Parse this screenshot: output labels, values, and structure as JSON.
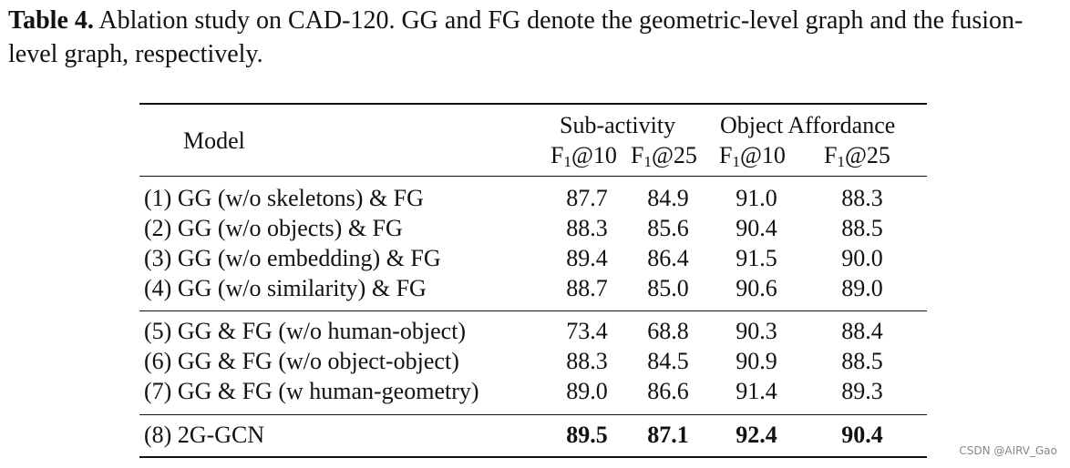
{
  "caption": {
    "label": "Table 4.",
    "text": "Ablation study on CAD-120. GG and FG denote the geometric-level graph and the fusion-level graph, respectively."
  },
  "table": {
    "header": {
      "model": "Model",
      "group1": "Sub-activity",
      "group2": "Object Affordance",
      "metric_prefix": "F",
      "metric_sub": "1",
      "cols": [
        "@10",
        "@25",
        "@10",
        "@25"
      ]
    },
    "rows": [
      {
        "label": "(1) GG (w/o skeletons) & FG",
        "values": [
          "87.7",
          "84.9",
          "91.0",
          "88.3"
        ],
        "bold": false
      },
      {
        "label": "(2) GG (w/o objects) & FG",
        "values": [
          "88.3",
          "85.6",
          "90.4",
          "88.5"
        ],
        "bold": false
      },
      {
        "label": "(3) GG (w/o embedding) & FG",
        "values": [
          "89.4",
          "86.4",
          "91.5",
          "90.0"
        ],
        "bold": false
      },
      {
        "label": "(4) GG (w/o similarity) & FG",
        "values": [
          "88.7",
          "85.0",
          "90.6",
          "89.0"
        ],
        "bold": false
      },
      {
        "label": "(5) GG & FG (w/o human-object)",
        "values": [
          "73.4",
          "68.8",
          "90.3",
          "88.4"
        ],
        "bold": false
      },
      {
        "label": "(6) GG & FG (w/o object-object)",
        "values": [
          "88.3",
          "84.5",
          "90.9",
          "88.5"
        ],
        "bold": false
      },
      {
        "label": "(7) GG & FG (w human-geometry)",
        "values": [
          "89.0",
          "86.6",
          "91.4",
          "89.3"
        ],
        "bold": false
      },
      {
        "label": "(8) 2G-GCN",
        "values": [
          "89.5",
          "87.1",
          "92.4",
          "90.4"
        ],
        "bold": true
      }
    ]
  },
  "watermark": "CSDN @AIRV_Gao"
}
